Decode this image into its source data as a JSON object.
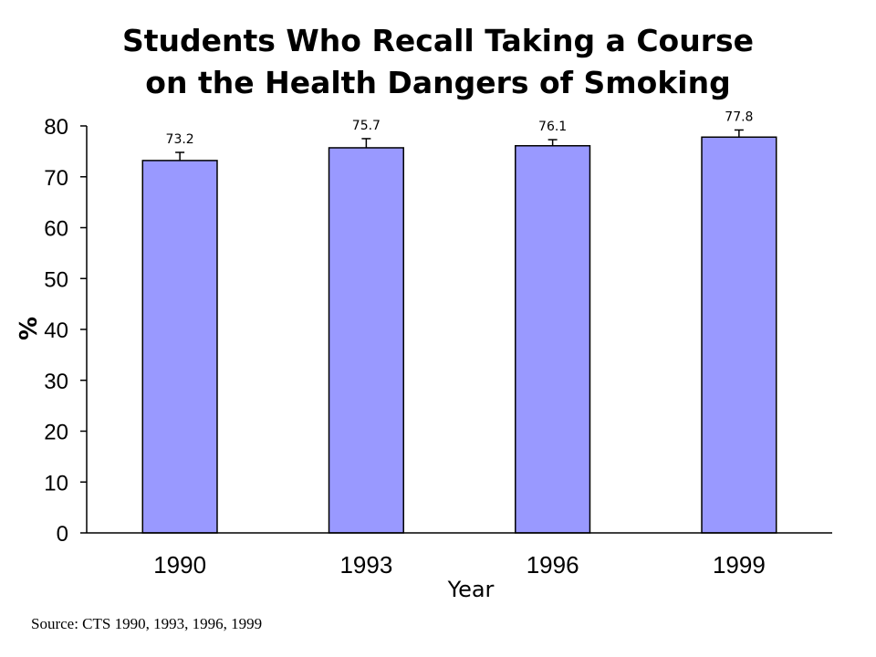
{
  "chart_data": {
    "type": "bar",
    "title_line1": "Students Who Recall Taking a Course",
    "title_line2": "on the Health Dangers of Smoking",
    "categories": [
      "1990",
      "1993",
      "1996",
      "1999"
    ],
    "values": [
      73.2,
      75.7,
      76.1,
      77.8
    ],
    "data_labels": [
      "73.2",
      "75.7",
      "76.1",
      "77.8"
    ],
    "error_upper": [
      1.6,
      1.8,
      1.2,
      1.4
    ],
    "xlabel": "Year",
    "ylabel": "%",
    "ylim": [
      0,
      80
    ],
    "yticks": [
      0,
      10,
      20,
      30,
      40,
      50,
      60,
      70,
      80
    ],
    "grid": false,
    "legend": "none",
    "bar_color": "#9999ff",
    "source": "Source:  CTS 1990, 1993, 1996, 1999"
  }
}
